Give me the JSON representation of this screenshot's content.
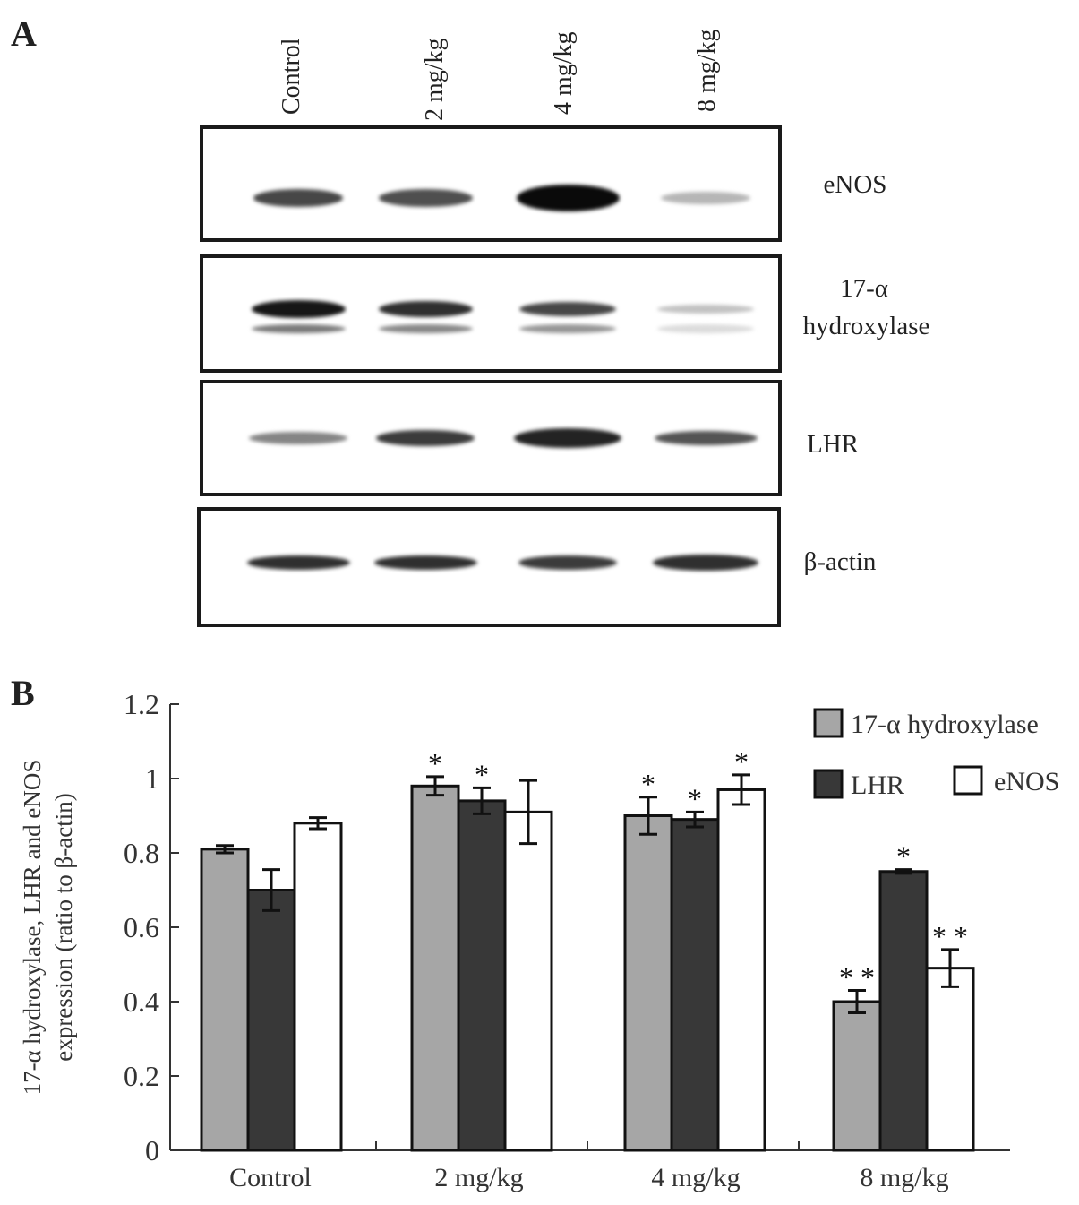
{
  "panel_a": {
    "letter": "A",
    "lanes": [
      "Control",
      "2 mg/kg",
      "4 mg/kg",
      "8 mg/kg"
    ],
    "blots": [
      {
        "protein": "eNOS",
        "band_intensity": [
          0.75,
          0.72,
          1.0,
          0.3
        ]
      },
      {
        "protein_line1": "17-α",
        "protein_line2": "hydroxylase",
        "band_intensity": [
          0.95,
          0.85,
          0.75,
          0.25
        ]
      },
      {
        "protein": "LHR",
        "band_intensity": [
          0.5,
          0.8,
          0.9,
          0.7
        ]
      },
      {
        "protein": "β-actin",
        "band_intensity": [
          0.85,
          0.85,
          0.8,
          0.85
        ]
      }
    ]
  },
  "panel_b": {
    "letter": "B"
  },
  "chart_data": {
    "type": "bar",
    "title": "",
    "xlabel": "",
    "ylabel_line1": "17-α hydroxylase, LHR and eNOS",
    "ylabel_line2": "expression (ratio to β-actin)",
    "ylim": [
      0,
      1.2
    ],
    "yticks": [
      "0",
      "0.2",
      "0.4",
      "0.6",
      "0.8",
      "1",
      "1.2"
    ],
    "categories": [
      "Control",
      "2 mg/kg",
      "4 mg/kg",
      "8 mg/kg"
    ],
    "legend_position": "top-right",
    "series": [
      {
        "name": "17-α  hydroxylase",
        "color": "#a6a6a6",
        "values": [
          0.81,
          0.98,
          0.9,
          0.4
        ],
        "errors": [
          0.01,
          0.025,
          0.05,
          0.03
        ],
        "annotations": [
          "",
          "*",
          "*",
          "**"
        ]
      },
      {
        "name": "LHR",
        "color": "#383838",
        "values": [
          0.7,
          0.94,
          0.89,
          0.75
        ],
        "errors": [
          0.055,
          0.035,
          0.02,
          0.005
        ],
        "annotations": [
          "",
          "*",
          "*",
          "*"
        ]
      },
      {
        "name": "eNOS",
        "color": "#ffffff",
        "values": [
          0.88,
          0.91,
          0.97,
          0.49
        ],
        "errors": [
          0.015,
          0.085,
          0.04,
          0.05
        ],
        "annotations": [
          "",
          "",
          "*",
          "**"
        ]
      }
    ]
  }
}
